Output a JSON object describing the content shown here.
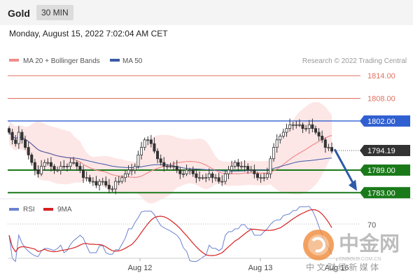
{
  "header": {
    "title": "Gold",
    "interval": "30 MIN"
  },
  "datetime": "Monday, August 15, 2022 7:02:04 AM CET",
  "legend": {
    "item1": "MA 20 + Bollinger Bands",
    "item2": "MA 50",
    "credit": "Research © 2022 Trading Central"
  },
  "rsi_legend": {
    "item1": "RSI",
    "item2": "9MA"
  },
  "watermark": {
    "cn": "中金网",
    "domain": "CNGOLD.COM.CN",
    "tagline": "中 文 财 经 新 媒 体"
  },
  "colors": {
    "ma20": "#f08c8c",
    "ma50": "#3b5ba5",
    "band": "#fde3e3",
    "resistance": "#2f5fd0",
    "support": "#1a7a1a",
    "price_tag": "#333333",
    "rsi": "#6b82d0",
    "rsi_ma": "#d62020"
  },
  "chart_data": {
    "type": "candlestick",
    "symbol": "Gold",
    "timeframe": "30 MIN",
    "x_ticks": [
      "Aug 12",
      "Aug 13",
      "Aug 16"
    ],
    "y_range": [
      1782.5,
      1815.5
    ],
    "price_levels": [
      {
        "value": 1814.0,
        "label": "1814.00",
        "kind": "resistance-thin",
        "color": "#e07060"
      },
      {
        "value": 1808.0,
        "label": "1808.00",
        "kind": "resistance-thin",
        "color": "#e07060"
      },
      {
        "value": 1802.0,
        "label": "1802.00",
        "kind": "resistance",
        "color": "#2f5fd0"
      },
      {
        "value": 1794.19,
        "label": "1794.19",
        "kind": "last-price",
        "color": "#333333"
      },
      {
        "value": 1789.0,
        "label": "1789.00",
        "kind": "support",
        "color": "#1a7a1a"
      },
      {
        "value": 1783.0,
        "label": "1783.00",
        "kind": "support",
        "color": "#1a7a1a"
      }
    ],
    "closes": [
      1799,
      1797,
      1796,
      1799,
      1797,
      1795,
      1793,
      1791,
      1789,
      1788,
      1790,
      1791,
      1791,
      1790,
      1789,
      1789,
      1790,
      1790,
      1790,
      1791,
      1791,
      1790,
      1789,
      1787,
      1787,
      1786,
      1786,
      1785,
      1786,
      1786,
      1785,
      1784,
      1784,
      1786,
      1786,
      1787,
      1788,
      1789,
      1789,
      1790,
      1793,
      1795,
      1797,
      1797,
      1796,
      1794,
      1792,
      1791,
      1790,
      1790,
      1790,
      1790,
      1789,
      1788,
      1788,
      1789,
      1789,
      1788,
      1787,
      1787,
      1787,
      1787,
      1788,
      1787,
      1787,
      1786,
      1786,
      1788,
      1789,
      1790,
      1791,
      1790,
      1790,
      1790,
      1789,
      1789,
      1788,
      1787,
      1787,
      1787,
      1788,
      1792,
      1795,
      1797,
      1798,
      1799,
      1800,
      1801,
      1801,
      1801,
      1801,
      1800,
      1800,
      1801,
      1800,
      1799,
      1798,
      1797,
      1795,
      1795,
      1794
    ],
    "rsi_level": 70,
    "forecast_arrow": {
      "from": 1794.5,
      "to": 1783.5
    }
  }
}
